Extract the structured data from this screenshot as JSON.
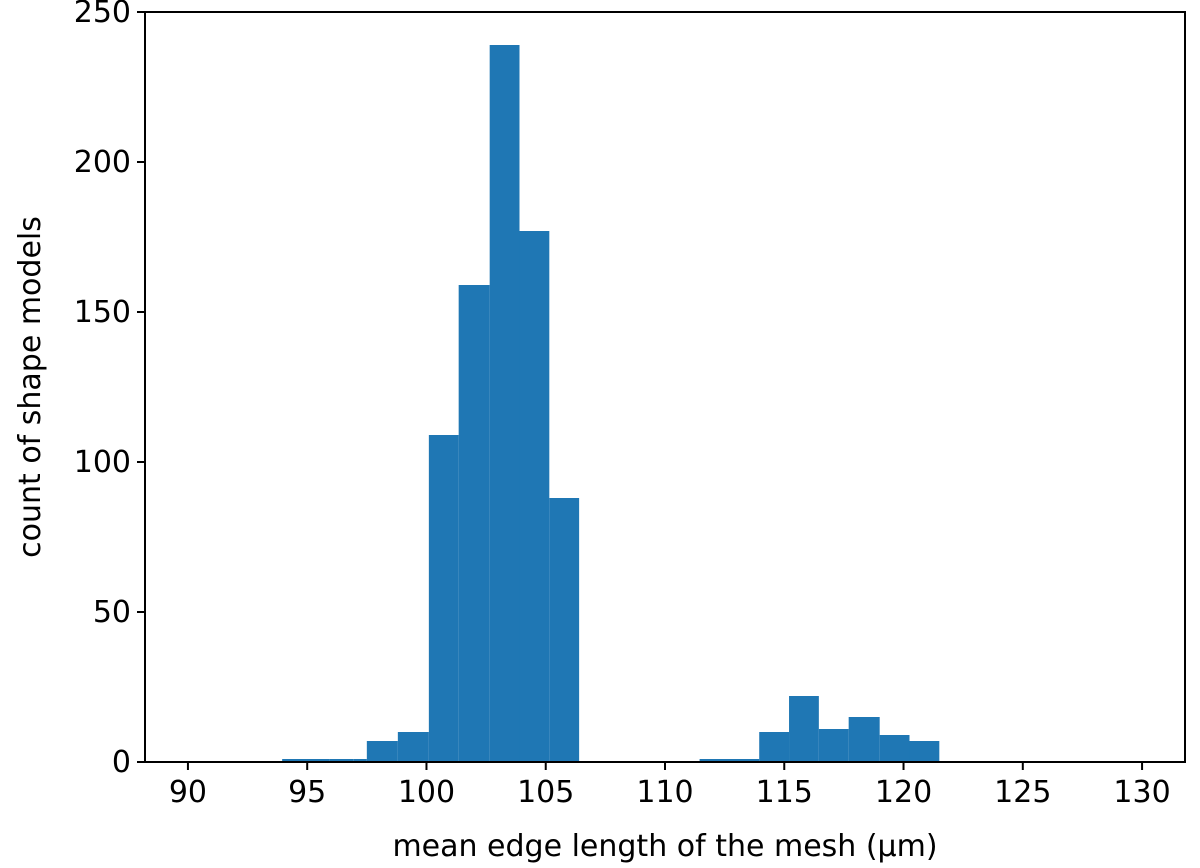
{
  "chart_data": {
    "type": "bar",
    "xlabel": "mean edge length of the mesh (μm)",
    "ylabel": "count of shape models",
    "xlim": [
      88.2,
      131.8
    ],
    "ylim": [
      0,
      250
    ],
    "xticks": [
      90,
      95,
      100,
      105,
      110,
      115,
      120,
      125,
      130
    ],
    "yticks": [
      0,
      50,
      100,
      150,
      200,
      250
    ],
    "bar_color": "#1f77b4",
    "grid": false,
    "bins": [
      {
        "x0": 93.95,
        "x1": 94.95,
        "value": 1
      },
      {
        "x0": 94.95,
        "x1": 95.95,
        "value": 1
      },
      {
        "x0": 95.95,
        "x1": 96.95,
        "value": 1
      },
      {
        "x0": 96.95,
        "x1": 97.5,
        "value": 1
      },
      {
        "x0": 97.5,
        "x1": 98.8,
        "value": 7
      },
      {
        "x0": 98.8,
        "x1": 100.1,
        "value": 10
      },
      {
        "x0": 100.1,
        "x1": 101.35,
        "value": 109
      },
      {
        "x0": 101.35,
        "x1": 102.65,
        "value": 159
      },
      {
        "x0": 102.65,
        "x1": 103.9,
        "value": 239
      },
      {
        "x0": 103.9,
        "x1": 105.15,
        "value": 177
      },
      {
        "x0": 105.15,
        "x1": 106.4,
        "value": 88
      },
      {
        "x0": 111.45,
        "x1": 113.95,
        "value": 1
      },
      {
        "x0": 113.95,
        "x1": 115.2,
        "value": 10
      },
      {
        "x0": 115.2,
        "x1": 116.45,
        "value": 22
      },
      {
        "x0": 116.45,
        "x1": 117.7,
        "value": 11
      },
      {
        "x0": 117.7,
        "x1": 119.0,
        "value": 15
      },
      {
        "x0": 119.0,
        "x1": 120.25,
        "value": 9
      },
      {
        "x0": 120.25,
        "x1": 121.5,
        "value": 7
      }
    ]
  }
}
